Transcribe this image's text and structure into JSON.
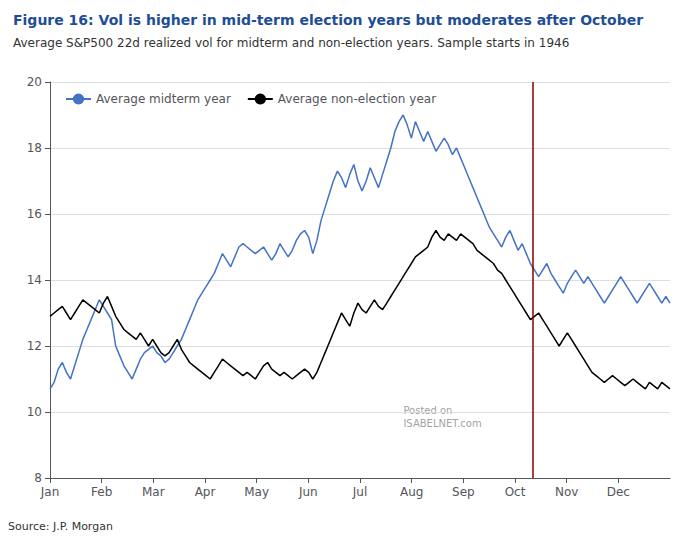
{
  "chart_data": {
    "type": "line",
    "title": "Figure 16: Vol is higher in mid-term election years but moderates after October",
    "subtitle": "Average S&P500 22d realized vol for midterm and non-election years. Sample starts in 1946",
    "source": "Source: J.P. Morgan",
    "annotations": [
      {
        "text": "Posted on\nISABELNET.com"
      }
    ],
    "title_color": "#1F4E96",
    "subtitle_color": "#333333",
    "xlim": [
      0,
      12
    ],
    "xticks": [
      {
        "value": 0,
        "label": "Jan"
      },
      {
        "value": 1,
        "label": "Feb"
      },
      {
        "value": 2,
        "label": "Mar"
      },
      {
        "value": 3,
        "label": "Apr"
      },
      {
        "value": 4,
        "label": "May"
      },
      {
        "value": 5,
        "label": "Jun"
      },
      {
        "value": 6,
        "label": "Jul"
      },
      {
        "value": 7,
        "label": "Aug"
      },
      {
        "value": 8,
        "label": "Sep"
      },
      {
        "value": 9,
        "label": "Oct"
      },
      {
        "value": 10,
        "label": "Nov"
      },
      {
        "value": 11,
        "label": "Dec"
      }
    ],
    "ylim": [
      8,
      20
    ],
    "yticks": [
      8,
      10,
      12,
      14,
      16,
      18,
      20
    ],
    "grid": true,
    "legend": "upper left",
    "vline": {
      "x": 9.35,
      "color": "#8B0000"
    },
    "x": [
      0,
      0.0795,
      0.1589,
      0.2384,
      0.3179,
      0.3974,
      0.4768,
      0.5563,
      0.6358,
      0.7152,
      0.7947,
      0.8742,
      0.9536,
      1.0331,
      1.1126,
      1.1921,
      1.2715,
      1.351,
      1.4305,
      1.5099,
      1.5894,
      1.6689,
      1.7483,
      1.8278,
      1.9073,
      1.9868,
      2.0662,
      2.1457,
      2.2252,
      2.3046,
      2.3841,
      2.4636,
      2.543,
      2.6225,
      2.702,
      2.7815,
      2.8609,
      2.9404,
      3.0199,
      3.0993,
      3.1788,
      3.2583,
      3.3377,
      3.4172,
      3.4967,
      3.5762,
      3.6556,
      3.7351,
      3.8146,
      3.894,
      3.9735,
      4.053,
      4.1325,
      4.2119,
      4.2914,
      4.3709,
      4.4503,
      4.5298,
      4.6093,
      4.6887,
      4.7682,
      4.8477,
      4.9272,
      5.0066,
      5.0861,
      5.1656,
      5.245,
      5.3245,
      5.404,
      5.4834,
      5.5629,
      5.6424,
      5.7219,
      5.8013,
      5.8808,
      5.9603,
      6.0397,
      6.1192,
      6.1987,
      6.2781,
      6.3576,
      6.4371,
      6.5166,
      6.596,
      6.6755,
      6.755,
      6.8344,
      6.9139,
      6.9934,
      7.0728,
      7.1523,
      7.2318,
      7.3113,
      7.3907,
      7.4702,
      7.5497,
      7.6291,
      7.7086,
      7.7881,
      7.8675,
      7.947,
      8.0265,
      8.106,
      8.1854,
      8.2649,
      8.3444,
      8.4238,
      8.5033,
      8.5828,
      8.6623,
      8.7417,
      8.8212,
      8.9007,
      8.9801,
      9.0596,
      9.1391,
      9.2185,
      9.298,
      9.3775,
      9.457,
      9.5364,
      9.6159,
      9.6954,
      9.7748,
      9.8543,
      9.9338,
      10.0132,
      10.0927,
      10.1722,
      10.2517,
      10.3311,
      10.4106,
      10.4901,
      10.5695,
      10.649,
      10.7285,
      10.8079,
      10.8874,
      10.9669,
      11.0464,
      11.1258,
      11.2053,
      11.2848,
      11.3642,
      11.4437,
      11.5232,
      11.6026,
      11.6821,
      11.7616,
      11.8411,
      11.9205,
      12
    ],
    "series": [
      {
        "name": "Average midterm year",
        "color": "#4472C4",
        "values": [
          10.7,
          10.9,
          11.3,
          11.5,
          11.2,
          11.0,
          11.4,
          11.8,
          12.2,
          12.5,
          12.8,
          13.1,
          13.4,
          13.2,
          13.0,
          12.8,
          12.0,
          11.7,
          11.4,
          11.2,
          11.0,
          11.3,
          11.6,
          11.8,
          11.9,
          12.0,
          11.8,
          11.7,
          11.5,
          11.6,
          11.8,
          12.0,
          12.2,
          12.5,
          12.8,
          13.1,
          13.4,
          13.6,
          13.8,
          14.0,
          14.2,
          14.5,
          14.8,
          14.6,
          14.4,
          14.7,
          15.0,
          15.1,
          15.0,
          14.9,
          14.8,
          14.9,
          15.0,
          14.8,
          14.6,
          14.8,
          15.1,
          14.9,
          14.7,
          14.9,
          15.2,
          15.4,
          15.5,
          15.3,
          14.8,
          15.2,
          15.8,
          16.2,
          16.6,
          17.0,
          17.3,
          17.1,
          16.8,
          17.2,
          17.5,
          17.0,
          16.7,
          17.0,
          17.4,
          17.1,
          16.8,
          17.2,
          17.6,
          18.0,
          18.5,
          18.8,
          19.0,
          18.7,
          18.3,
          18.8,
          18.5,
          18.2,
          18.5,
          18.2,
          17.9,
          18.1,
          18.3,
          18.1,
          17.8,
          18.0,
          17.7,
          17.4,
          17.1,
          16.8,
          16.5,
          16.2,
          15.9,
          15.6,
          15.4,
          15.2,
          15.0,
          15.3,
          15.5,
          15.2,
          14.9,
          15.1,
          14.8,
          14.5,
          14.3,
          14.1,
          14.3,
          14.5,
          14.2,
          14.0,
          13.8,
          13.6,
          13.9,
          14.1,
          14.3,
          14.1,
          13.9,
          14.1,
          13.9,
          13.7,
          13.5,
          13.3,
          13.5,
          13.7,
          13.9,
          14.1,
          13.9,
          13.7,
          13.5,
          13.3,
          13.5,
          13.7,
          13.9,
          13.7,
          13.5,
          13.3,
          13.5,
          13.3
        ]
      },
      {
        "name": "Average non-election year",
        "color": "#000000",
        "values": [
          12.9,
          13.0,
          13.1,
          13.2,
          13.0,
          12.8,
          13.0,
          13.2,
          13.4,
          13.3,
          13.2,
          13.1,
          13.0,
          13.3,
          13.5,
          13.2,
          12.9,
          12.7,
          12.5,
          12.4,
          12.3,
          12.2,
          12.4,
          12.2,
          12.0,
          12.2,
          12.0,
          11.8,
          11.7,
          11.8,
          12.0,
          12.2,
          11.9,
          11.7,
          11.5,
          11.4,
          11.3,
          11.2,
          11.1,
          11.0,
          11.2,
          11.4,
          11.6,
          11.5,
          11.4,
          11.3,
          11.2,
          11.1,
          11.2,
          11.1,
          11.0,
          11.2,
          11.4,
          11.5,
          11.3,
          11.2,
          11.1,
          11.2,
          11.1,
          11.0,
          11.1,
          11.2,
          11.3,
          11.2,
          11.0,
          11.2,
          11.5,
          11.8,
          12.1,
          12.4,
          12.7,
          13.0,
          12.8,
          12.6,
          13.0,
          13.3,
          13.1,
          13.0,
          13.2,
          13.4,
          13.2,
          13.1,
          13.3,
          13.5,
          13.7,
          13.9,
          14.1,
          14.3,
          14.5,
          14.7,
          14.8,
          14.9,
          15.0,
          15.3,
          15.5,
          15.3,
          15.2,
          15.4,
          15.3,
          15.2,
          15.4,
          15.3,
          15.2,
          15.1,
          14.9,
          14.8,
          14.7,
          14.6,
          14.5,
          14.3,
          14.2,
          14.0,
          13.8,
          13.6,
          13.4,
          13.2,
          13.0,
          12.8,
          12.9,
          13.0,
          12.8,
          12.6,
          12.4,
          12.2,
          12.0,
          12.2,
          12.4,
          12.2,
          12.0,
          11.8,
          11.6,
          11.4,
          11.2,
          11.1,
          11.0,
          10.9,
          11.0,
          11.1,
          11.0,
          10.9,
          10.8,
          10.9,
          11.0,
          10.9,
          10.8,
          10.7,
          10.9,
          10.8,
          10.7,
          10.9,
          10.8,
          10.7
        ]
      }
    ]
  }
}
